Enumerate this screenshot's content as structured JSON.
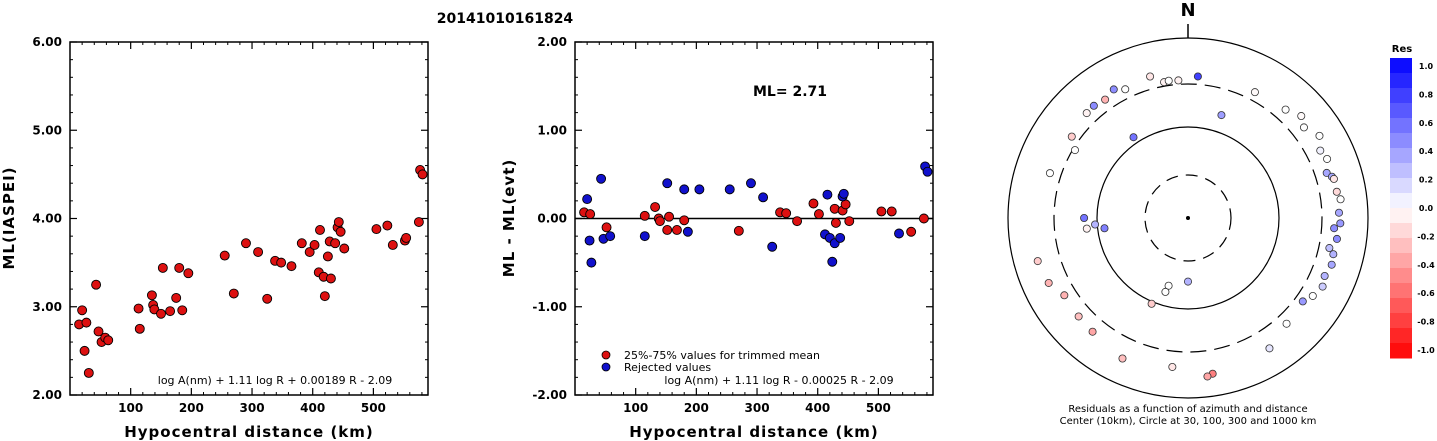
{
  "figure_title": "20141010161824",
  "colors": {
    "accepted": "#dd1111",
    "rejected": "#1111cc",
    "axis": "#000000"
  },
  "chart_data": [
    {
      "type": "scatter",
      "ylabel": "ML(IASPEI)",
      "xlabel": "Hypocentral distance (km)",
      "xlim": [
        0,
        590
      ],
      "ylim": [
        2.0,
        6.0
      ],
      "xticks": [
        "100",
        "200",
        "300",
        "400",
        "500"
      ],
      "xtick_values": [
        100,
        200,
        300,
        400,
        500
      ],
      "yticks": [
        "2.00",
        "3.00",
        "4.00",
        "5.00",
        "6.00"
      ],
      "ytick_values": [
        2,
        3,
        4,
        5,
        6
      ],
      "formula": "log A(nm) + 1.11 log R + 0.00189 R - 2.09",
      "series": [
        {
          "points": [
            [
              15,
              2.8
            ],
            [
              20,
              2.96
            ],
            [
              24,
              2.5
            ],
            [
              27,
              2.82
            ],
            [
              31,
              2.25
            ],
            [
              43,
              3.25
            ],
            [
              47,
              2.72
            ],
            [
              52,
              2.6
            ],
            [
              58,
              2.65
            ],
            [
              63,
              2.62
            ],
            [
              113,
              2.98
            ],
            [
              115,
              2.75
            ],
            [
              135,
              3.13
            ],
            [
              137,
              3.02
            ],
            [
              139,
              2.97
            ],
            [
              150,
              2.92
            ],
            [
              153,
              3.44
            ],
            [
              165,
              2.95
            ],
            [
              175,
              3.1
            ],
            [
              180,
              3.44
            ],
            [
              185,
              2.96
            ],
            [
              195,
              3.38
            ],
            [
              255,
              3.58
            ],
            [
              270,
              3.15
            ],
            [
              290,
              3.72
            ],
            [
              310,
              3.62
            ],
            [
              325,
              3.09
            ],
            [
              338,
              3.52
            ],
            [
              348,
              3.5
            ],
            [
              365,
              3.46
            ],
            [
              382,
              3.72
            ],
            [
              395,
              3.62
            ],
            [
              403,
              3.7
            ],
            [
              410,
              3.39
            ],
            [
              412,
              3.87
            ],
            [
              418,
              3.34
            ],
            [
              420,
              3.12
            ],
            [
              425,
              3.57
            ],
            [
              428,
              3.74
            ],
            [
              430,
              3.32
            ],
            [
              437,
              3.72
            ],
            [
              441,
              3.9
            ],
            [
              443,
              3.96
            ],
            [
              446,
              3.85
            ],
            [
              452,
              3.66
            ],
            [
              505,
              3.88
            ],
            [
              523,
              3.92
            ],
            [
              532,
              3.7
            ],
            [
              552,
              3.75
            ],
            [
              554,
              3.78
            ],
            [
              575,
              3.96
            ],
            [
              577,
              4.55
            ],
            [
              581,
              4.5
            ]
          ]
        }
      ]
    },
    {
      "type": "scatter",
      "ylabel": "ML - ML(evt)",
      "xlabel": "Hypocentral distance (km)",
      "xlim": [
        0,
        590
      ],
      "ylim": [
        -2.0,
        2.0
      ],
      "xticks": [
        "100",
        "200",
        "300",
        "400",
        "500"
      ],
      "xtick_values": [
        100,
        200,
        300,
        400,
        500
      ],
      "yticks": [
        "-2.00",
        "-1.00",
        "0.00",
        "1.00",
        "2.00"
      ],
      "ytick_values": [
        -2,
        -1,
        0,
        1,
        2
      ],
      "annotation": "ML= 2.71",
      "formula": "log A(nm) + 1.11 log R - 0.00025 R - 2.09",
      "legend": [
        "25%-75% values for trimmed mean",
        "Rejected values"
      ],
      "series": [
        {
          "name": "25%-75% values for trimmed mean",
          "points": [
            [
              15,
              0.07
            ],
            [
              25,
              0.05
            ],
            [
              52,
              -0.1
            ],
            [
              115,
              0.03
            ],
            [
              132,
              0.13
            ],
            [
              138,
              0.0
            ],
            [
              140,
              -0.03
            ],
            [
              152,
              -0.13
            ],
            [
              155,
              0.02
            ],
            [
              168,
              -0.13
            ],
            [
              180,
              -0.02
            ],
            [
              270,
              -0.14
            ],
            [
              338,
              0.07
            ],
            [
              348,
              0.06
            ],
            [
              366,
              -0.03
            ],
            [
              393,
              0.17
            ],
            [
              402,
              0.05
            ],
            [
              428,
              0.11
            ],
            [
              430,
              -0.05
            ],
            [
              441,
              0.09
            ],
            [
              446,
              0.16
            ],
            [
              452,
              -0.03
            ],
            [
              505,
              0.08
            ],
            [
              522,
              0.08
            ],
            [
              554,
              -0.15
            ],
            [
              575,
              0.0
            ]
          ]
        },
        {
          "name": "Rejected values",
          "points": [
            [
              20,
              0.22
            ],
            [
              24,
              -0.25
            ],
            [
              27,
              -0.5
            ],
            [
              43,
              0.45
            ],
            [
              47,
              -0.23
            ],
            [
              58,
              -0.2
            ],
            [
              115,
              -0.2
            ],
            [
              152,
              0.4
            ],
            [
              180,
              0.33
            ],
            [
              186,
              -0.15
            ],
            [
              205,
              0.33
            ],
            [
              255,
              0.33
            ],
            [
              290,
              0.4
            ],
            [
              310,
              0.24
            ],
            [
              325,
              -0.32
            ],
            [
              412,
              -0.18
            ],
            [
              416,
              0.27
            ],
            [
              420,
              -0.22
            ],
            [
              424,
              -0.49
            ],
            [
              428,
              -0.28
            ],
            [
              437,
              -0.22
            ],
            [
              441,
              0.25
            ],
            [
              443,
              0.28
            ],
            [
              534,
              -0.17
            ],
            [
              577,
              0.59
            ],
            [
              581,
              0.53
            ]
          ]
        }
      ]
    },
    {
      "type": "polar-scatter",
      "north_label": "N",
      "caption_line1": "Residuals as a function of azimuth and distance",
      "caption_line2": "Center (10km), Circle at 30, 100, 300 and 1000 km",
      "colorbar_title": "Res",
      "colorbar_ticks": [
        "1.0",
        "0.8",
        "0.6",
        "0.4",
        "0.2",
        "0.0",
        "-0.2",
        "-0.4",
        "-0.6",
        "-0.8",
        "-1.0"
      ],
      "colorbar_range": [
        -1.0,
        1.0
      ],
      "rings_km": [
        30,
        100,
        300,
        1000
      ],
      "points": [
        {
          "az": 4,
          "dist": 420,
          "res": 0.75
        },
        {
          "az": 356,
          "dist": 360,
          "res": -0.05
        },
        {
          "az": 350,
          "dist": 360,
          "res": -0.05
        },
        {
          "az": 28,
          "dist": 430,
          "res": -0.02
        },
        {
          "az": 18,
          "dist": 180,
          "res": 0.38
        },
        {
          "az": 42,
          "dist": 480,
          "res": 0.0
        },
        {
          "az": 48,
          "dist": 580,
          "res": -0.02
        },
        {
          "az": 52,
          "dist": 500,
          "res": 0.0
        },
        {
          "az": 58,
          "dist": 620,
          "res": 0.0
        },
        {
          "az": 63,
          "dist": 520,
          "res": 0.05
        },
        {
          "az": 67,
          "dist": 560,
          "res": 0.0
        },
        {
          "az": 72,
          "dist": 480,
          "res": 0.35
        },
        {
          "az": 74,
          "dist": 540,
          "res": 0.35
        },
        {
          "az": 75,
          "dist": 560,
          "res": -0.1
        },
        {
          "az": 80,
          "dist": 560,
          "res": -0.15
        },
        {
          "az": 83,
          "dist": 600,
          "res": 0.0
        },
        {
          "az": 88,
          "dist": 560,
          "res": 0.35
        },
        {
          "az": 92,
          "dist": 580,
          "res": 0.4
        },
        {
          "az": 94,
          "dist": 490,
          "res": 0.45
        },
        {
          "az": 98,
          "dist": 550,
          "res": 0.45
        },
        {
          "az": 102,
          "dist": 460,
          "res": 0.25
        },
        {
          "az": 104,
          "dist": 540,
          "res": 0.3
        },
        {
          "az": 108,
          "dist": 560,
          "res": 0.35
        },
        {
          "az": 113,
          "dist": 520,
          "res": 0.3
        },
        {
          "az": 117,
          "dist": 560,
          "res": 0.2
        },
        {
          "az": 122,
          "dist": 500,
          "res": 0.0
        },
        {
          "az": 126,
          "dist": 420,
          "res": 0.4
        },
        {
          "az": 137,
          "dist": 460,
          "res": 0.0
        },
        {
          "az": 148,
          "dist": 600,
          "res": 0.1
        },
        {
          "az": 171,
          "dist": 660,
          "res": -0.5
        },
        {
          "az": 173,
          "dist": 690,
          "res": -0.35
        },
        {
          "az": 180,
          "dist": 60,
          "res": 0.3
        },
        {
          "az": 186,
          "dist": 540,
          "res": -0.1
        },
        {
          "az": 196,
          "dist": 70,
          "res": 0.0
        },
        {
          "az": 203,
          "dist": 110,
          "res": -0.2
        },
        {
          "az": 197,
          "dist": 80,
          "res": 0.0
        },
        {
          "az": 205,
          "dist": 620,
          "res": -0.25
        },
        {
          "az": 220,
          "dist": 520,
          "res": -0.35
        },
        {
          "az": 228,
          "dist": 500,
          "res": -0.25
        },
        {
          "az": 238,
          "dist": 480,
          "res": -0.3
        },
        {
          "az": 245,
          "dist": 600,
          "res": -0.3
        },
        {
          "az": 254,
          "dist": 640,
          "res": -0.2
        },
        {
          "az": 263,
          "dist": 90,
          "res": 0.5
        },
        {
          "az": 264,
          "dist": 150,
          "res": -0.05
        },
        {
          "az": 266,
          "dist": 110,
          "res": 0.3
        },
        {
          "az": 270,
          "dist": 160,
          "res": 0.55
        },
        {
          "az": 288,
          "dist": 470,
          "res": 0.0
        },
        {
          "az": 301,
          "dist": 290,
          "res": 0.0
        },
        {
          "az": 305,
          "dist": 420,
          "res": -0.2
        },
        {
          "az": 316,
          "dist": 480,
          "res": -0.05
        },
        {
          "az": 320,
          "dist": 490,
          "res": 0.45
        },
        {
          "az": 325,
          "dist": 460,
          "res": -0.3
        },
        {
          "az": 326,
          "dist": 130,
          "res": 0.55
        },
        {
          "az": 330,
          "dist": 520,
          "res": 0.45
        },
        {
          "az": 334,
          "dist": 440,
          "res": 0.0
        },
        {
          "az": 345,
          "dist": 490,
          "res": -0.1
        },
        {
          "az": 352,
          "dist": 370,
          "res": 0.0
        }
      ]
    }
  ]
}
